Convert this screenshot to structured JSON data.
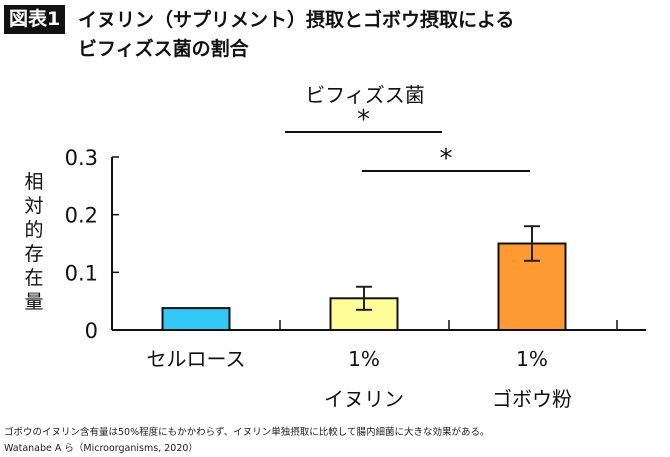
{
  "header": {
    "badge": "図表1",
    "title_line1": "イヌリン（サプリメント）摂取とゴボウ摂取による",
    "title_line2": "ビフィズス菌の割合"
  },
  "chart_data": {
    "type": "bar",
    "subtitle": "ビフィズス菌",
    "ylabel": "相対的存在量",
    "ylim": [
      0,
      0.3
    ],
    "yticks": [
      "0",
      "0.1",
      "0.2",
      "0.3"
    ],
    "categories": [
      [
        "セルロース"
      ],
      [
        "1%",
        "イヌリン"
      ],
      [
        "1%",
        "ゴボウ粉"
      ]
    ],
    "values": [
      0.038,
      0.055,
      0.15
    ],
    "errors": [
      0,
      0.02,
      0.03
    ],
    "colors": [
      "#33c8f5",
      "#fefb99",
      "#fd9a32"
    ],
    "significance": [
      {
        "from": 0,
        "to": 1,
        "label": "*"
      },
      {
        "from": 1,
        "to": 2,
        "label": "*"
      }
    ],
    "grid": false
  },
  "footer": {
    "note": "ゴボウのイヌリン含有量は50%程度にもかかわらず、イヌリン単独摂取に比較して腸内細菌に大きな効果がある。",
    "source": "Watanabe A ら（Microorganisms, 2020）"
  }
}
